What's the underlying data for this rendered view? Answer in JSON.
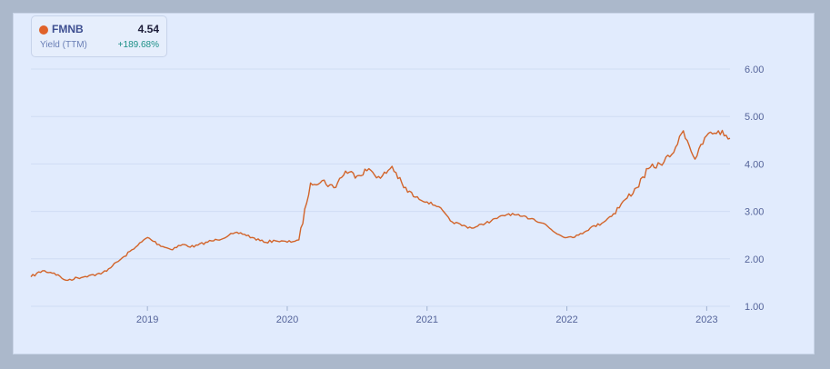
{
  "legend": {
    "ticker": "FMNB",
    "value": "4.54",
    "metric": "Yield (TTM)",
    "change": "+189.68%"
  },
  "colors": {
    "line": "#d2642a",
    "dot": "#e0622a",
    "change": "#1a8f86",
    "plot_background": "#e1ebfd",
    "page_background": "#abb8cb"
  },
  "chart_data": {
    "type": "line",
    "title": "",
    "xlabel": "",
    "ylabel": "",
    "x_ticks": [
      "2019",
      "2020",
      "2021",
      "2022",
      "2023"
    ],
    "y_ticks": [
      "1.00",
      "2.00",
      "3.00",
      "4.00",
      "5.00",
      "6.00"
    ],
    "ylim": [
      1,
      6
    ],
    "xlim": [
      "2018-03",
      "2023-03"
    ],
    "grid": true,
    "legend_placement": "top-left",
    "series": [
      {
        "name": "FMNB",
        "x": [
          "2018-03",
          "2018-04",
          "2018-05",
          "2018-06",
          "2018-07",
          "2018-08",
          "2018-09",
          "2018-10",
          "2018-11",
          "2018-12",
          "2019-01",
          "2019-02",
          "2019-03",
          "2019-04",
          "2019-05",
          "2019-06",
          "2019-07",
          "2019-08",
          "2019-09",
          "2019-10",
          "2019-11",
          "2019-12",
          "2020-01",
          "2020-02",
          "2020-03",
          "2020-04",
          "2020-05",
          "2020-06",
          "2020-07",
          "2020-08",
          "2020-09",
          "2020-10",
          "2020-11",
          "2020-12",
          "2021-01",
          "2021-02",
          "2021-03",
          "2021-04",
          "2021-05",
          "2021-06",
          "2021-07",
          "2021-08",
          "2021-09",
          "2021-10",
          "2021-11",
          "2021-12",
          "2022-01",
          "2022-02",
          "2022-03",
          "2022-04",
          "2022-05",
          "2022-06",
          "2022-07",
          "2022-08",
          "2022-09",
          "2022-10",
          "2022-11",
          "2022-12",
          "2023-01",
          "2023-02",
          "2023-03"
        ],
        "values": [
          1.62,
          1.75,
          1.7,
          1.55,
          1.6,
          1.65,
          1.68,
          1.85,
          2.05,
          2.25,
          2.45,
          2.3,
          2.2,
          2.3,
          2.25,
          2.35,
          2.4,
          2.5,
          2.55,
          2.45,
          2.35,
          2.38,
          2.35,
          2.4,
          3.6,
          3.65,
          3.5,
          3.85,
          3.75,
          3.9,
          3.7,
          3.95,
          3.5,
          3.3,
          3.2,
          3.1,
          2.8,
          2.7,
          2.65,
          2.75,
          2.85,
          2.95,
          2.9,
          2.85,
          2.75,
          2.55,
          2.45,
          2.5,
          2.65,
          2.75,
          2.95,
          3.25,
          3.5,
          3.9,
          4.0,
          4.2,
          4.7,
          4.1,
          4.6,
          4.7,
          4.54
        ]
      }
    ]
  }
}
